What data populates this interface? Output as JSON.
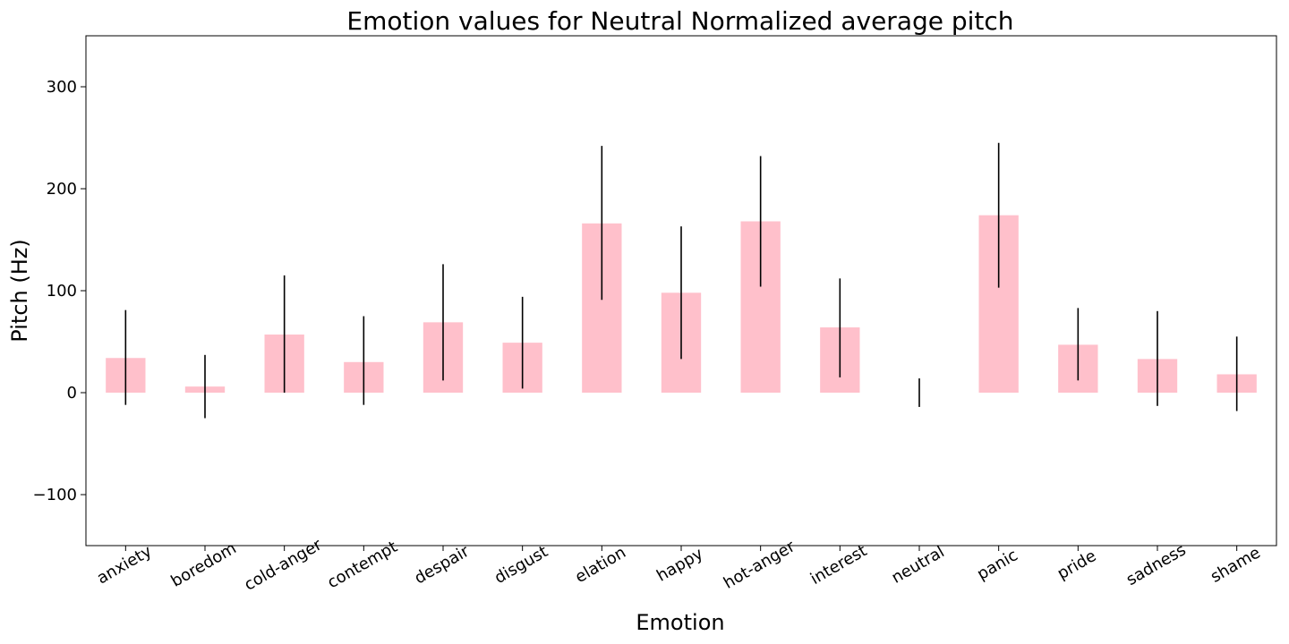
{
  "colors": {
    "bar": "#FFC0CB",
    "error_bar": "#000000",
    "axes": "#000000",
    "background": "#FFFFFF"
  },
  "chart_data": {
    "type": "bar",
    "title": "Emotion values for Neutral Normalized average pitch",
    "xlabel": "Emotion",
    "ylabel": "Pitch (Hz)",
    "ylim": [
      -150,
      350
    ],
    "yticks": [
      -100,
      0,
      100,
      200,
      300
    ],
    "ytick_labels": [
      "−100",
      "0",
      "100",
      "200",
      "300"
    ],
    "grid": false,
    "legend": false,
    "x_tick_rotation": 30,
    "categories": [
      "anxiety",
      "boredom",
      "cold-anger",
      "contempt",
      "despair",
      "disgust",
      "elation",
      "happy",
      "hot-anger",
      "interest",
      "neutral",
      "panic",
      "pride",
      "sadness",
      "shame"
    ],
    "values": [
      34,
      6,
      57,
      30,
      69,
      49,
      166,
      98,
      168,
      64,
      0,
      174,
      47,
      33,
      18
    ],
    "error_low": [
      -12,
      -25,
      0,
      -12,
      12,
      4,
      91,
      33,
      104,
      15,
      -14,
      103,
      12,
      -13,
      -18
    ],
    "error_high": [
      81,
      37,
      115,
      75,
      126,
      94,
      242,
      163,
      232,
      112,
      14,
      245,
      83,
      80,
      55
    ]
  }
}
